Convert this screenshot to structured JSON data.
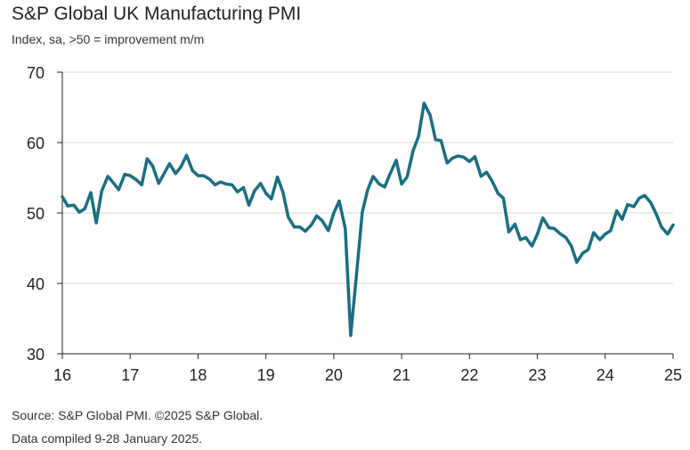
{
  "title": "S&P Global UK Manufacturing PMI",
  "subtitle": "Index, sa, >50 = improvement m/m",
  "footer": {
    "source": "Source: S&P Global PMI. ©2025 S&P Global.",
    "compiled": "Data compiled 9-28 January 2025."
  },
  "colors": {
    "line": "#1a6e82",
    "grid": "#d9d9d9",
    "axis": "#222222"
  },
  "chart_data": {
    "type": "line",
    "title": "S&P Global UK Manufacturing PMI",
    "subtitle": "Index, sa, >50 = improvement m/m",
    "xlabel": "",
    "ylabel": "",
    "ylim": [
      30,
      70
    ],
    "yticks": [
      "30",
      "40",
      "50",
      "60",
      "70"
    ],
    "xlim": [
      2016.0,
      2025.0
    ],
    "xticks": [
      "16",
      "17",
      "18",
      "19",
      "20",
      "21",
      "22",
      "23",
      "24",
      "25"
    ],
    "grid": "horizontal",
    "series": [
      {
        "x": [
          2016.0,
          2016.08,
          2016.17,
          2016.25,
          2016.33,
          2016.42,
          2016.5,
          2016.58,
          2016.67,
          2016.75,
          2016.83,
          2016.92,
          2017.0,
          2017.08,
          2017.17,
          2017.25,
          2017.33,
          2017.42,
          2017.5,
          2017.58,
          2017.67,
          2017.75,
          2017.83,
          2017.92,
          2018.0,
          2018.08,
          2018.17,
          2018.25,
          2018.33,
          2018.42,
          2018.5,
          2018.58,
          2018.67,
          2018.75,
          2018.83,
          2018.92,
          2019.0,
          2019.08,
          2019.17,
          2019.25,
          2019.33,
          2019.42,
          2019.5,
          2019.58,
          2019.67,
          2019.75,
          2019.83,
          2019.92,
          2020.0,
          2020.08,
          2020.17,
          2020.25,
          2020.33,
          2020.42,
          2020.5,
          2020.58,
          2020.67,
          2020.75,
          2020.83,
          2020.92,
          2021.0,
          2021.08,
          2021.17,
          2021.25,
          2021.33,
          2021.42,
          2021.5,
          2021.58,
          2021.67,
          2021.75,
          2021.83,
          2021.92,
          2022.0,
          2022.08,
          2022.17,
          2022.25,
          2022.33,
          2022.42,
          2022.5,
          2022.58,
          2022.67,
          2022.75,
          2022.83,
          2022.92,
          2023.0,
          2023.08,
          2023.17,
          2023.25,
          2023.33,
          2023.42,
          2023.5,
          2023.58,
          2023.67,
          2023.75,
          2023.83,
          2023.92,
          2024.0,
          2024.08,
          2024.17,
          2024.25,
          2024.33,
          2024.42,
          2024.5,
          2024.58,
          2024.67,
          2024.75,
          2024.83,
          2024.92,
          2025.0
        ],
        "values": [
          52.3,
          51.0,
          51.1,
          50.1,
          50.6,
          52.9,
          48.6,
          53.1,
          55.2,
          54.3,
          53.3,
          55.5,
          55.3,
          54.8,
          54.0,
          57.7,
          56.7,
          54.2,
          55.6,
          57.0,
          55.6,
          56.6,
          58.2,
          56.0,
          55.3,
          55.3,
          54.8,
          54.0,
          54.4,
          54.1,
          54.0,
          53.0,
          53.6,
          51.1,
          53.1,
          54.2,
          52.8,
          52.0,
          55.1,
          53.0,
          49.4,
          48.0,
          48.0,
          47.4,
          48.3,
          49.6,
          48.9,
          47.5,
          50.0,
          51.7,
          47.8,
          32.6,
          40.7,
          50.1,
          53.3,
          55.2,
          54.1,
          53.7,
          55.6,
          57.5,
          54.1,
          55.1,
          58.9,
          60.9,
          65.6,
          63.9,
          60.4,
          60.3,
          57.1,
          57.8,
          58.1,
          57.9,
          57.3,
          58.0,
          55.2,
          55.8,
          54.6,
          52.8,
          52.1,
          47.3,
          48.4,
          46.2,
          46.5,
          45.3,
          47.0,
          49.3,
          47.9,
          47.8,
          47.1,
          46.5,
          45.3,
          43.0,
          44.3,
          44.8,
          47.2,
          46.2,
          47.0,
          47.5,
          50.3,
          49.1,
          51.2,
          50.9,
          52.1,
          52.5,
          51.5,
          49.9,
          48.0,
          47.0,
          48.3
        ]
      }
    ]
  }
}
